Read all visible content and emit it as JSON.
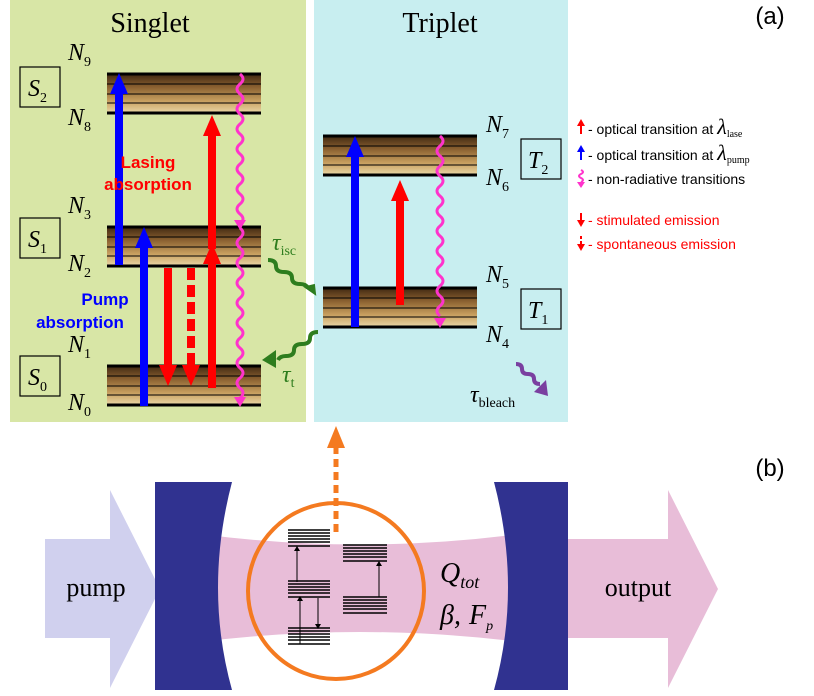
{
  "panel_a": {
    "label": "(a)",
    "singlet": {
      "title": "Singlet",
      "states": [
        {
          "name": "S",
          "sub": "2",
          "upper": {
            "name": "N",
            "sub": "9"
          },
          "lower": {
            "name": "N",
            "sub": "8"
          }
        },
        {
          "name": "S",
          "sub": "1",
          "upper": {
            "name": "N",
            "sub": "3"
          },
          "lower": {
            "name": "N",
            "sub": "2"
          }
        },
        {
          "name": "S",
          "sub": "0",
          "upper": {
            "name": "N",
            "sub": "1"
          },
          "lower": {
            "name": "N",
            "sub": "0"
          }
        }
      ],
      "lasing_label": [
        "Lasing",
        "absorption"
      ],
      "pump_label": [
        "Pump",
        "absorption"
      ]
    },
    "triplet": {
      "title": "Triplet",
      "states": [
        {
          "name": "T",
          "sub": "2",
          "upper": {
            "name": "N",
            "sub": "7"
          },
          "lower": {
            "name": "N",
            "sub": "6"
          }
        },
        {
          "name": "T",
          "sub": "1",
          "upper": {
            "name": "N",
            "sub": "5"
          },
          "lower": {
            "name": "N",
            "sub": "4"
          }
        }
      ]
    },
    "rates": {
      "isc": {
        "symbol": "τ",
        "sub": "isc"
      },
      "t": {
        "symbol": "τ",
        "sub": "t"
      },
      "bleach": {
        "symbol": "τ",
        "sub": "bleach"
      }
    },
    "legend": [
      {
        "text": "- optical transition at",
        "symbol": "λ",
        "sub": "lase",
        "color": "#ff0000",
        "kind": "arrow-up"
      },
      {
        "text": "- optical transition at",
        "symbol": "λ",
        "sub": "pump",
        "color": "#0000ff",
        "kind": "arrow-up"
      },
      {
        "text": "- non-radiative transitions",
        "color": "#ff33cc",
        "kind": "wavy"
      },
      {
        "text": "- stimulated emission",
        "color": "#ff0000",
        "kind": "arrow-down"
      },
      {
        "text": "- spontaneous emission",
        "color": "#ff0000",
        "kind": "dashed-down"
      }
    ]
  },
  "panel_b": {
    "label": "(b)",
    "input_label": "pump",
    "output_label": "output",
    "q_label": {
      "main": "Q",
      "sub": "tot"
    },
    "params": {
      "beta": "β,",
      "f": "F",
      "f_sub": "p"
    }
  },
  "colors": {
    "singlet_bg": "#d8e6a6",
    "triplet_bg": "#c8eef0",
    "pump": "#0000ff",
    "lase": "#ff0000",
    "nonrad": "#ff33cc",
    "isc": "#2e7d1e",
    "bleach": "#7a3fa0",
    "mirror": "#303290",
    "beam": "#e8bdd8",
    "pump_arrow": "#d0d0ee",
    "output_arrow": "#e8bdd8",
    "circle": "#f47a20"
  }
}
